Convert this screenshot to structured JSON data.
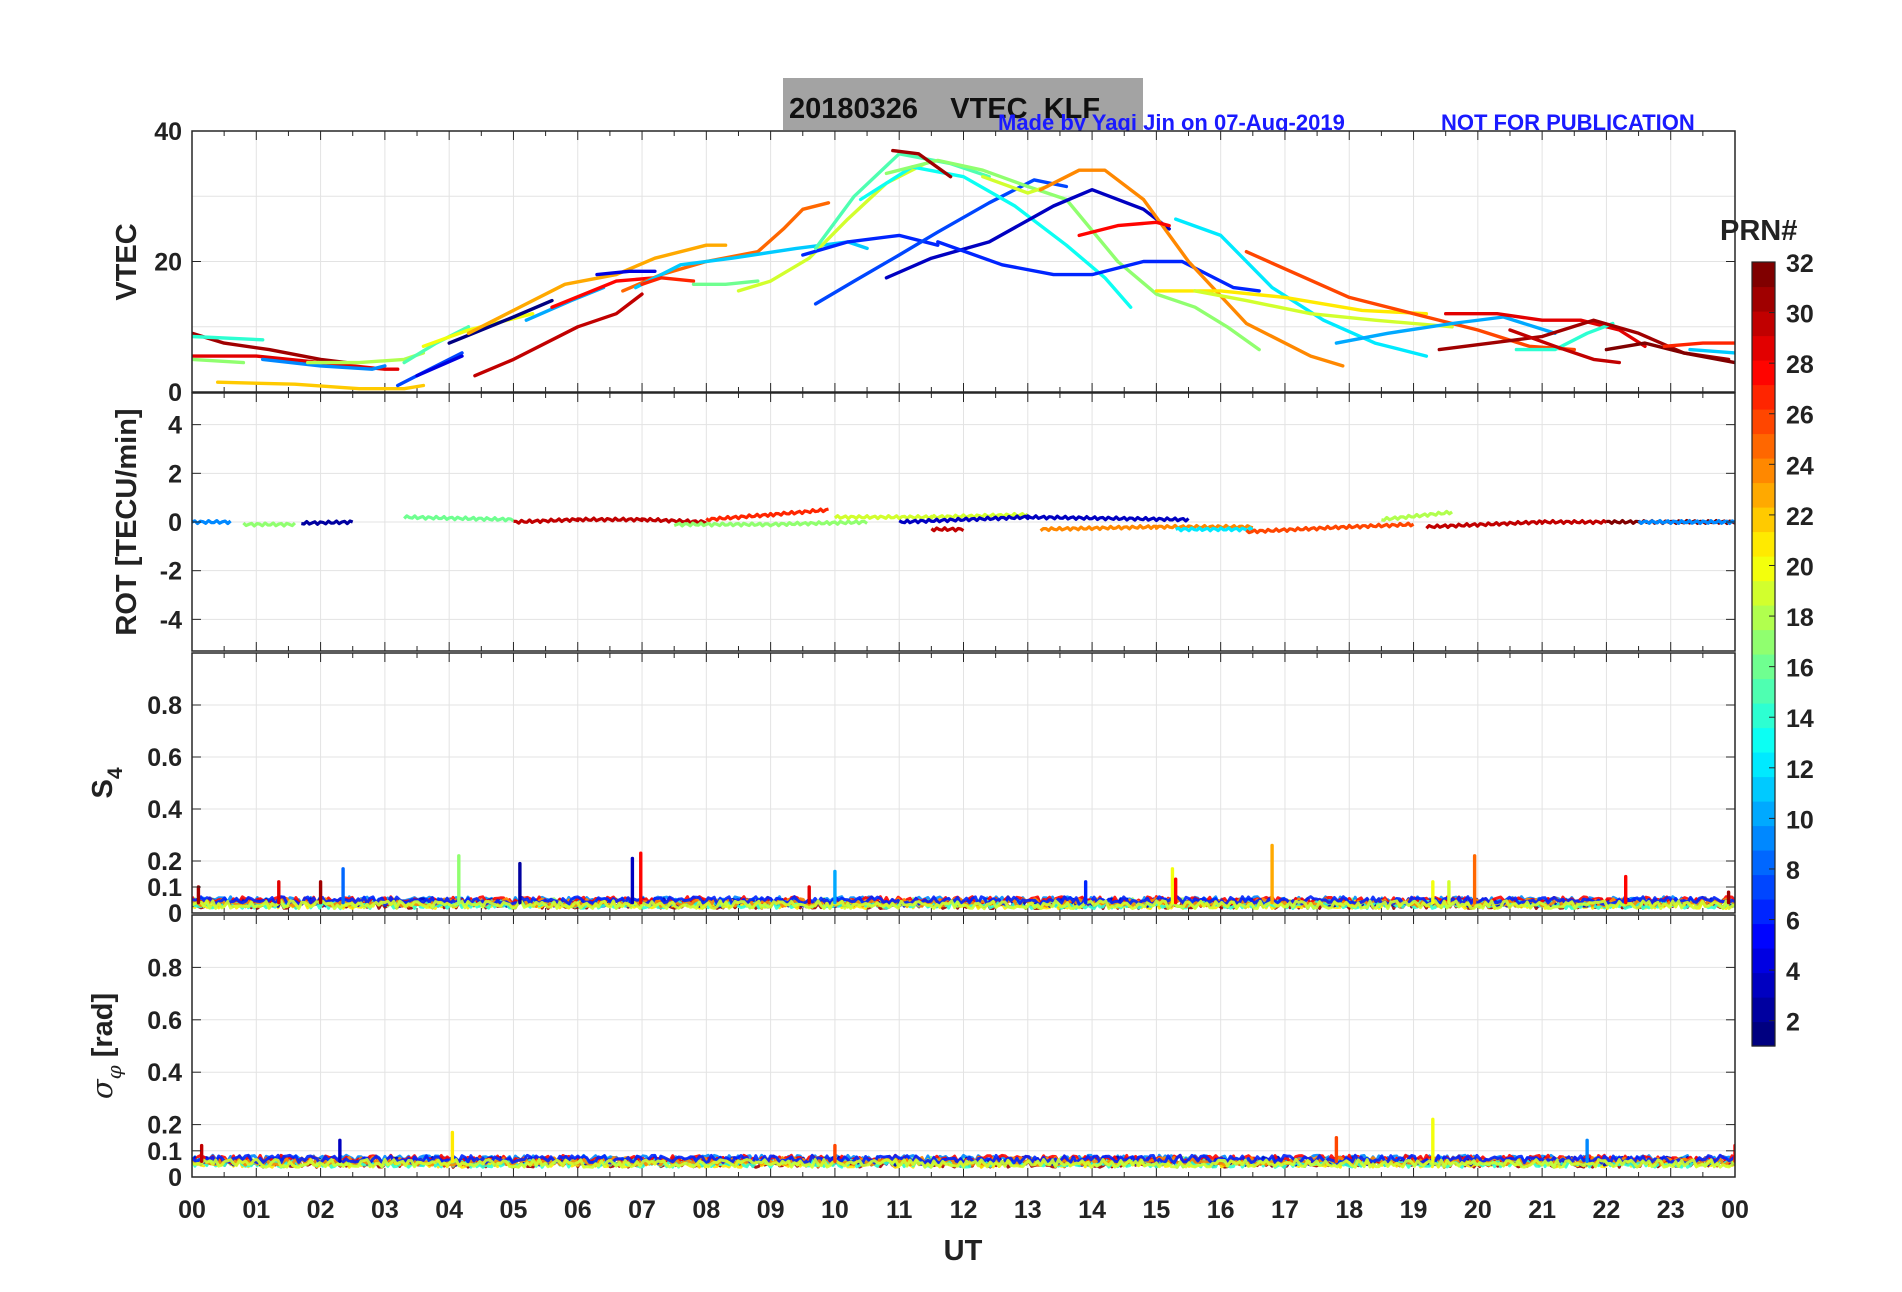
{
  "title": "20180326    VTEC  KLF",
  "credit": "Made by Yaqi Jin on 07-Aug-2019",
  "notice": "NOT FOR PUBLICATION",
  "xlabel": "UT",
  "xticks": [
    "00",
    "01",
    "02",
    "03",
    "04",
    "05",
    "06",
    "07",
    "08",
    "09",
    "10",
    "11",
    "12",
    "13",
    "14",
    "15",
    "16",
    "17",
    "18",
    "19",
    "20",
    "21",
    "22",
    "23",
    "00"
  ],
  "colorbar": {
    "label": "PRN#",
    "range": [
      1,
      32
    ],
    "ticks": [
      "2",
      "4",
      "6",
      "8",
      "10",
      "12",
      "14",
      "16",
      "18",
      "20",
      "22",
      "24",
      "26",
      "28",
      "30",
      "32"
    ],
    "colormap": "jet"
  },
  "panels": [
    {
      "id": "vtec",
      "ylabel": "VTEC",
      "ylim": [
        0,
        40
      ],
      "yticks": [
        "0",
        "20",
        "40"
      ]
    },
    {
      "id": "rot",
      "ylabel": "ROT [TECU/min]",
      "ylim": [
        -5,
        5
      ],
      "yticks": [
        "-4",
        "-2",
        "0",
        "2",
        "4"
      ]
    },
    {
      "id": "s4",
      "ylabel": "S4",
      "ylim": [
        0,
        1
      ],
      "yticks": [
        "0",
        "0.1",
        "0.2",
        "0.4",
        "0.6",
        "0.8"
      ]
    },
    {
      "id": "sigma",
      "ylabel": "σφ [rad]",
      "ylim": [
        0,
        1
      ],
      "yticks": [
        "0",
        "0.1",
        "0.2",
        "0.4",
        "0.6",
        "0.8"
      ]
    }
  ],
  "chart_data": {
    "type": "line",
    "title": "20180326    VTEC  KLF",
    "xlabel": "UT",
    "xlim": [
      0,
      24
    ],
    "grid": true,
    "colorbar_label": "PRN#",
    "vtec_series": [
      {
        "prn": 29,
        "x": [
          0.0,
          1.0,
          2.0,
          3.0,
          3.2
        ],
        "y": [
          5.5,
          5.5,
          4.5,
          3.5,
          3.5
        ]
      },
      {
        "prn": 31,
        "x": [
          0.0,
          0.5,
          1.2,
          2.0,
          2.4
        ],
        "y": [
          9.0,
          7.5,
          6.5,
          5.0,
          4.5
        ]
      },
      {
        "prn": 14,
        "x": [
          0.0,
          1.1
        ],
        "y": [
          8.5,
          8.0
        ]
      },
      {
        "prn": 17,
        "x": [
          0.0,
          0.8
        ],
        "y": [
          5.0,
          4.5
        ]
      },
      {
        "prn": 9,
        "x": [
          1.1,
          2.0,
          2.8,
          3.0
        ],
        "y": [
          5.0,
          4.0,
          3.5,
          4.0
        ]
      },
      {
        "prn": 18,
        "x": [
          1.8,
          2.6,
          3.3,
          3.6
        ],
        "y": [
          4.5,
          4.5,
          5.0,
          6.0
        ]
      },
      {
        "prn": 22,
        "x": [
          0.4,
          1.6,
          2.6,
          3.3,
          3.6
        ],
        "y": [
          1.5,
          1.2,
          0.5,
          0.5,
          1.0
        ]
      },
      {
        "prn": 7,
        "x": [
          3.2,
          3.6,
          4.2
        ],
        "y": [
          1.0,
          3.0,
          6.0
        ]
      },
      {
        "prn": 4,
        "x": [
          3.5,
          4.2
        ],
        "y": [
          2.5,
          5.5
        ]
      },
      {
        "prn": 15,
        "x": [
          3.3,
          3.8,
          4.3
        ],
        "y": [
          4.5,
          7.5,
          10.0
        ]
      },
      {
        "prn": 20,
        "x": [
          3.6,
          4.3,
          5.3
        ],
        "y": [
          7.0,
          9.5,
          12.0
        ]
      },
      {
        "prn": 1,
        "x": [
          4.0,
          5.0,
          5.6
        ],
        "y": [
          7.5,
          11.5,
          14.0
        ]
      },
      {
        "prn": 23,
        "x": [
          4.3,
          5.0,
          5.8,
          6.6,
          7.2,
          8.0,
          8.3
        ],
        "y": [
          9.0,
          12.5,
          16.5,
          18.0,
          20.5,
          22.5,
          22.5
        ]
      },
      {
        "prn": 10,
        "x": [
          5.2,
          5.9,
          6.4
        ],
        "y": [
          11.0,
          14.0,
          16.0
        ]
      },
      {
        "prn": 30,
        "x": [
          4.4,
          5.0,
          6.0,
          6.6,
          7.0
        ],
        "y": [
          2.5,
          5.0,
          10.0,
          12.0,
          15.0
        ]
      },
      {
        "prn": 28,
        "x": [
          5.6,
          6.6,
          7.2
        ],
        "y": [
          13.0,
          17.0,
          17.5
        ]
      },
      {
        "prn": 4,
        "x": [
          6.3,
          6.8,
          7.2
        ],
        "y": [
          18.0,
          18.5,
          18.5
        ]
      },
      {
        "prn": 25,
        "x": [
          6.7,
          7.3,
          8.0,
          8.8,
          9.2,
          9.5,
          9.9
        ],
        "y": [
          15.5,
          18.0,
          20.0,
          21.5,
          25.0,
          28.0,
          29.0
        ]
      },
      {
        "prn": 11,
        "x": [
          6.9,
          7.6,
          8.4,
          9.4,
          10.2,
          10.5
        ],
        "y": [
          16.0,
          19.5,
          20.5,
          22.0,
          23.0,
          22.0
        ]
      },
      {
        "prn": 27,
        "x": [
          7.0,
          7.3,
          7.8
        ],
        "y": [
          16.5,
          17.5,
          17.0
        ]
      },
      {
        "prn": 16,
        "x": [
          7.8,
          8.3,
          8.8
        ],
        "y": [
          16.5,
          16.5,
          17.0
        ]
      },
      {
        "prn": 19,
        "x": [
          8.5,
          9.0,
          9.6,
          10.2,
          10.8,
          11.4
        ],
        "y": [
          15.5,
          17.0,
          20.5,
          26.5,
          32.0,
          35.0
        ]
      },
      {
        "prn": 6,
        "x": [
          9.5,
          10.2,
          11.0,
          11.6
        ],
        "y": [
          21.0,
          23.0,
          24.0,
          22.5
        ]
      },
      {
        "prn": 15,
        "x": [
          9.7,
          10.3,
          11.0,
          11.8,
          12.4
        ],
        "y": [
          22.0,
          30.0,
          36.5,
          35.0,
          33.0
        ]
      },
      {
        "prn": 7,
        "x": [
          9.7,
          10.3,
          11.0,
          11.6,
          12.4,
          13.1,
          13.6
        ],
        "y": [
          13.5,
          17.0,
          21.0,
          24.5,
          29.0,
          32.5,
          31.5
        ]
      },
      {
        "prn": 13,
        "x": [
          10.4,
          11.2,
          12.0,
          12.8,
          13.6,
          14.2,
          14.6
        ],
        "y": [
          29.5,
          34.5,
          33.0,
          28.5,
          22.5,
          17.5,
          13.0
        ]
      },
      {
        "prn": 17,
        "x": [
          10.8,
          11.6,
          12.3,
          13.0,
          13.6,
          14.4,
          15.0,
          15.6,
          16.1,
          16.6
        ],
        "y": [
          33.5,
          35.5,
          34.0,
          31.5,
          29.5,
          20.0,
          15.0,
          13.0,
          10.0,
          6.5
        ]
      },
      {
        "prn": 31,
        "x": [
          10.9,
          11.3,
          11.8
        ],
        "y": [
          37.0,
          36.5,
          33.0
        ]
      },
      {
        "prn": 3,
        "x": [
          10.8,
          11.5,
          12.4,
          13.4,
          14.0,
          14.8,
          15.2
        ],
        "y": [
          17.5,
          20.5,
          23.0,
          28.5,
          31.0,
          28.0,
          25.0
        ]
      },
      {
        "prn": 6,
        "x": [
          11.6,
          12.6,
          13.4,
          14.0,
          14.8,
          15.4,
          16.2,
          16.6
        ],
        "y": [
          23.0,
          19.5,
          18.0,
          18.0,
          20.0,
          20.0,
          16.0,
          15.5
        ]
      },
      {
        "prn": 19,
        "x": [
          12.3,
          13.0,
          13.3
        ],
        "y": [
          33.0,
          30.5,
          31.5
        ]
      },
      {
        "prn": 24,
        "x": [
          13.2,
          13.8,
          14.2,
          14.8,
          15.5,
          16.4,
          17.4,
          17.9
        ],
        "y": [
          31.0,
          34.0,
          34.0,
          29.5,
          20.0,
          10.5,
          5.5,
          4.0
        ]
      },
      {
        "prn": 28,
        "x": [
          13.8,
          14.4,
          15.0,
          15.2
        ],
        "y": [
          24.0,
          25.5,
          26.0,
          25.5
        ]
      },
      {
        "prn": 12,
        "x": [
          15.3,
          16.0,
          16.8,
          17.6,
          18.4,
          19.2
        ],
        "y": [
          26.5,
          24.0,
          16.0,
          11.0,
          7.5,
          5.5
        ]
      },
      {
        "prn": 21,
        "x": [
          15.0,
          16.0,
          17.0,
          18.2,
          19.2
        ],
        "y": [
          15.5,
          15.5,
          14.5,
          12.5,
          12.0
        ]
      },
      {
        "prn": 19,
        "x": [
          15.6,
          16.4,
          17.4,
          18.4,
          19.6
        ],
        "y": [
          15.5,
          14.0,
          12.0,
          11.0,
          10.0
        ]
      },
      {
        "prn": 26,
        "x": [
          16.4,
          17.2,
          18.0,
          19.2,
          20.0,
          20.8,
          21.5
        ],
        "y": [
          21.5,
          18.0,
          14.5,
          11.5,
          9.5,
          7.0,
          6.5
        ]
      },
      {
        "prn": 10,
        "x": [
          17.8,
          18.6,
          19.6,
          20.4,
          21.2
        ],
        "y": [
          7.5,
          9.0,
          10.5,
          11.5,
          9.0
        ]
      },
      {
        "prn": 29,
        "x": [
          19.5,
          20.3,
          21.0,
          21.6,
          22.2,
          22.6
        ],
        "y": [
          12.0,
          12.0,
          11.0,
          11.0,
          9.5,
          7.0
        ]
      },
      {
        "prn": 14,
        "x": [
          20.6,
          21.2,
          21.7,
          22.1
        ],
        "y": [
          6.5,
          6.5,
          9.0,
          10.5
        ]
      },
      {
        "prn": 31,
        "x": [
          19.4,
          20.2,
          21.0,
          21.8,
          22.5,
          23.2,
          23.9
        ],
        "y": [
          6.5,
          7.5,
          8.5,
          11.0,
          9.0,
          6.0,
          5.0
        ]
      },
      {
        "prn": 30,
        "x": [
          20.5,
          21.2,
          21.8,
          22.2
        ],
        "y": [
          9.5,
          7.0,
          5.0,
          4.5
        ]
      },
      {
        "prn": 32,
        "x": [
          22.0,
          22.6,
          23.2,
          24.0
        ],
        "y": [
          6.5,
          7.5,
          6.0,
          4.5
        ]
      },
      {
        "prn": 27,
        "x": [
          22.9,
          23.5,
          24.0
        ],
        "y": [
          7.0,
          7.5,
          7.5
        ]
      },
      {
        "prn": 11,
        "x": [
          23.3,
          24.0
        ],
        "y": [
          6.5,
          6.0
        ]
      }
    ],
    "rot_series": [
      {
        "prn": 9,
        "x": [
          0.0,
          0.6
        ],
        "y": [
          0.0,
          0.0
        ]
      },
      {
        "prn": 17,
        "x": [
          0.8,
          1.6
        ],
        "y": [
          -0.1,
          -0.1
        ]
      },
      {
        "prn": 2,
        "x": [
          1.7,
          2.5
        ],
        "y": [
          -0.05,
          0.0
        ]
      },
      {
        "prn": 16,
        "x": [
          3.3,
          5.0
        ],
        "y": [
          0.2,
          0.1
        ]
      },
      {
        "prn": 30,
        "x": [
          5.0,
          6.0,
          7.0,
          8.0
        ],
        "y": [
          0.0,
          0.1,
          0.1,
          0.0
        ]
      },
      {
        "prn": 27,
        "x": [
          8.0,
          9.0,
          9.9
        ],
        "y": [
          0.1,
          0.3,
          0.5
        ]
      },
      {
        "prn": 17,
        "x": [
          7.5,
          9.0,
          10.5
        ],
        "y": [
          -0.1,
          -0.1,
          0.0
        ]
      },
      {
        "prn": 19,
        "x": [
          10.0,
          11.5,
          13.0
        ],
        "y": [
          0.2,
          0.2,
          0.3
        ]
      },
      {
        "prn": 3,
        "x": [
          11.0,
          13.0,
          15.5
        ],
        "y": [
          0.0,
          0.2,
          0.1
        ]
      },
      {
        "prn": 30,
        "x": [
          11.5,
          12.0
        ],
        "y": [
          -0.3,
          -0.3
        ]
      },
      {
        "prn": 24,
        "x": [
          13.2,
          15.0,
          16.5
        ],
        "y": [
          -0.3,
          -0.2,
          -0.2
        ]
      },
      {
        "prn": 12,
        "x": [
          15.3,
          16.5
        ],
        "y": [
          -0.3,
          -0.3
        ]
      },
      {
        "prn": 26,
        "x": [
          16.4,
          18.0,
          19.0
        ],
        "y": [
          -0.4,
          -0.2,
          -0.1
        ]
      },
      {
        "prn": 18,
        "x": [
          18.5,
          19.6
        ],
        "y": [
          0.1,
          0.4
        ]
      },
      {
        "prn": 30,
        "x": [
          19.2,
          21.0,
          22.0
        ],
        "y": [
          -0.2,
          0.0,
          0.0
        ]
      },
      {
        "prn": 32,
        "x": [
          22.0,
          23.0,
          24.0
        ],
        "y": [
          0.0,
          0.0,
          0.0
        ]
      },
      {
        "prn": 9,
        "x": [
          22.5,
          24.0
        ],
        "y": [
          0.0,
          0.0
        ]
      }
    ],
    "s4_spikes": [
      {
        "prn": 31,
        "x": 0.1,
        "y": 0.1
      },
      {
        "prn": 29,
        "x": 1.35,
        "y": 0.12
      },
      {
        "prn": 31,
        "x": 2.0,
        "y": 0.12
      },
      {
        "prn": 8,
        "x": 2.35,
        "y": 0.17
      },
      {
        "prn": 17,
        "x": 4.15,
        "y": 0.22
      },
      {
        "prn": 2,
        "x": 5.1,
        "y": 0.19
      },
      {
        "prn": 3,
        "x": 6.85,
        "y": 0.21
      },
      {
        "prn": 28,
        "x": 6.98,
        "y": 0.23
      },
      {
        "prn": 29,
        "x": 9.6,
        "y": 0.1
      },
      {
        "prn": 10,
        "x": 10.0,
        "y": 0.16
      },
      {
        "prn": 6,
        "x": 13.9,
        "y": 0.12
      },
      {
        "prn": 20,
        "x": 15.25,
        "y": 0.17
      },
      {
        "prn": 28,
        "x": 15.3,
        "y": 0.13
      },
      {
        "prn": 23,
        "x": 16.8,
        "y": 0.26
      },
      {
        "prn": 20,
        "x": 19.3,
        "y": 0.12
      },
      {
        "prn": 19,
        "x": 19.55,
        "y": 0.12
      },
      {
        "prn": 25,
        "x": 19.95,
        "y": 0.22
      },
      {
        "prn": 28,
        "x": 22.3,
        "y": 0.14
      },
      {
        "prn": 31,
        "x": 23.9,
        "y": 0.08
      }
    ],
    "s4_baseline": 0.04,
    "sigma_spikes": [
      {
        "prn": 30,
        "x": 0.15,
        "y": 0.12
      },
      {
        "prn": 3,
        "x": 2.3,
        "y": 0.14
      },
      {
        "prn": 21,
        "x": 4.05,
        "y": 0.17
      },
      {
        "prn": 26,
        "x": 10.0,
        "y": 0.12
      },
      {
        "prn": 26,
        "x": 17.8,
        "y": 0.15
      },
      {
        "prn": 20,
        "x": 19.3,
        "y": 0.22
      },
      {
        "prn": 9,
        "x": 21.7,
        "y": 0.14
      },
      {
        "prn": 28,
        "x": 24.0,
        "y": 0.12
      }
    ],
    "sigma_baseline": 0.06
  }
}
